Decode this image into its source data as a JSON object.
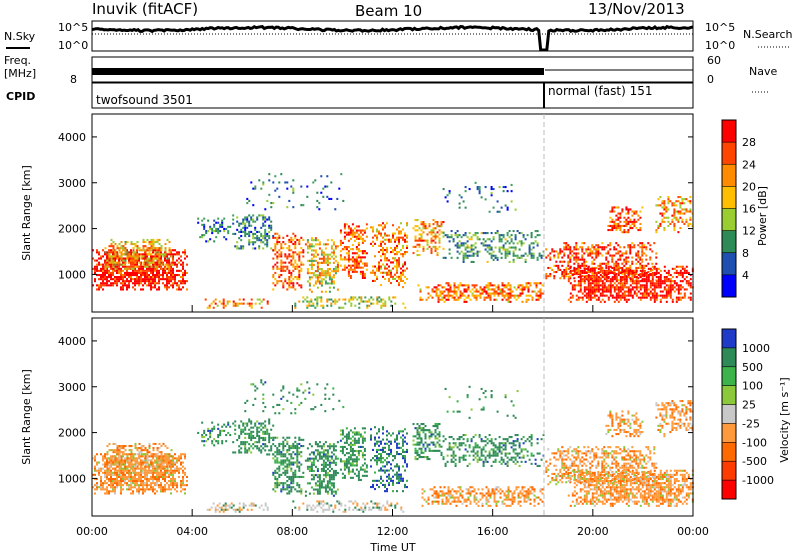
{
  "header": {
    "station": "Inuvik (fitACF)",
    "beam": "Beam 10",
    "date": "13/Nov/2013"
  },
  "top_panels": {
    "nsky_label": "N.Sky",
    "nsky_tick_top": "10^5",
    "nsky_tick_bottom": "10^0",
    "nsearch_label": "N.Search",
    "nsearch_tick_top": "10^5",
    "nsearch_tick_bottom": "10^0",
    "freq_label_1": "Freq.",
    "freq_label_2": "[MHz]",
    "freq_tick_top": "",
    "freq_tick_bottom": "8",
    "nave_label": "Nave",
    "nave_tick_top": "60",
    "nave_tick_bottom": "0",
    "cpid_label": "CPID",
    "cpid_segments": [
      "twofsound 3501",
      "normal (fast) 151"
    ],
    "cpid_change_time": "18:00"
  },
  "chart_data": [
    {
      "type": "heatmap",
      "parameter": "Power",
      "ylabel": "Slant Range [km]",
      "y_ticks": [
        1000,
        2000,
        3000,
        4000
      ],
      "ylim": [
        180,
        4500
      ],
      "colorbar_label": "Power [dB]",
      "colorbar_ticks": [
        "28",
        "24",
        "20",
        "16",
        "12",
        "8",
        "4"
      ],
      "colorbar_colors": [
        "#ff0000",
        "#ff4500",
        "#ff8c00",
        "#ffbf00",
        "#9acd32",
        "#2e8b57",
        "#1f4fb0",
        "#0000ff"
      ]
    },
    {
      "type": "heatmap",
      "parameter": "Velocity",
      "ylabel": "Slant Range [km]",
      "y_ticks": [
        1000,
        2000,
        3000,
        4000
      ],
      "ylim": [
        180,
        4500
      ],
      "colorbar_label": "Velocity [m s⁻¹]",
      "colorbar_ticks": [
        "1000",
        "500",
        "100",
        "25",
        "-25",
        "-100",
        "-500",
        "-1000"
      ],
      "colorbar_colors": [
        "#1e3cc8",
        "#2e8b57",
        "#3cb44b",
        "#8cc83c",
        "#c8c8c8",
        "#ff9a3c",
        "#ff6a00",
        "#ff3c00",
        "#ff0000"
      ]
    }
  ],
  "x_axis": {
    "label": "Time UT",
    "ticks": [
      "00:00",
      "04:00",
      "08:00",
      "12:00",
      "16:00",
      "20:00",
      "00:00"
    ]
  },
  "colors": {
    "power_scale": [
      "#0000ff",
      "#1f4fb0",
      "#2e8b57",
      "#3fa060",
      "#9acd32",
      "#ffbf00",
      "#ff8c00",
      "#ff4500",
      "#ff0000"
    ],
    "velocity_scale": [
      "#ff0000",
      "#ff3c00",
      "#ff6a00",
      "#ff9a3c",
      "#c8c8c8",
      "#8cc83c",
      "#3cb44b",
      "#2e8b57",
      "#1e3cc8"
    ]
  }
}
